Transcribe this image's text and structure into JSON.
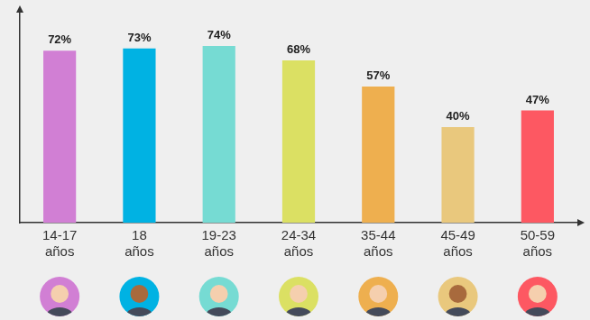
{
  "chart_data": {
    "type": "bar",
    "categories": [
      "14-17 años",
      "18 años",
      "19-23 años",
      "24-34 años",
      "35-44 años",
      "45-49 años",
      "50-59 años"
    ],
    "values": [
      72,
      73,
      74,
      68,
      57,
      40,
      47
    ],
    "value_labels": [
      "72%",
      "73%",
      "74%",
      "68%",
      "57%",
      "40%",
      "47%"
    ],
    "colors": [
      "#d17fd4",
      "#00b2e3",
      "#76dbd3",
      "#dbe063",
      "#eeaf4f",
      "#e9c87d",
      "#fd5862"
    ],
    "ylim": [
      0,
      88
    ],
    "yticks": [],
    "grid": false,
    "data_labels": true,
    "tick_labels": "x"
  }
}
